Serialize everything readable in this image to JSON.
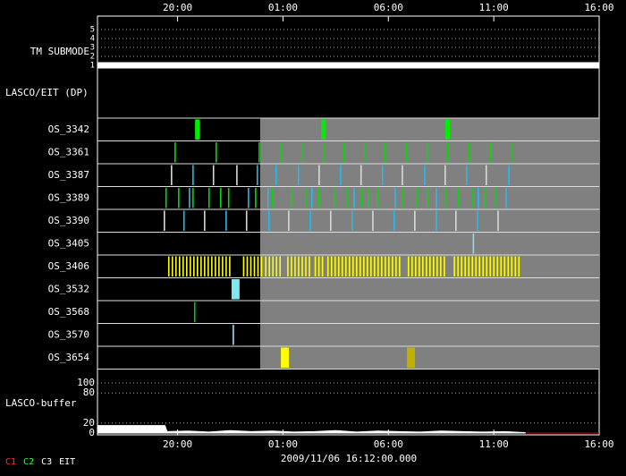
{
  "chart_data": {
    "type": "timeline",
    "date_label": "2009/11/06 16:12:00.000",
    "xlim": [
      16.2,
      40
    ],
    "xticks": [
      {
        "value": 20,
        "label": "20:00"
      },
      {
        "value": 25,
        "label": "01:00"
      },
      {
        "value": 30,
        "label": "06:00"
      },
      {
        "value": 35,
        "label": "11:00"
      },
      {
        "value": 40,
        "label": "16:00"
      }
    ],
    "gray_start": 23.92,
    "tm_submode": {
      "label": "TM SUBMODE",
      "ylim": [
        0.3,
        5.3
      ],
      "yticks": [
        1,
        2,
        3,
        4,
        5
      ],
      "x": [
        16.2,
        40
      ],
      "values": [
        1,
        1
      ],
      "color": "#ffffff"
    },
    "dp_label": "LASCO/EIT (DP)",
    "rows": [
      {
        "name": "OS_3342",
        "series": [
          {
            "color": "#00ee00",
            "duration": 0.22,
            "times": [
              20.83,
              26.81,
              32.7
            ]
          }
        ]
      },
      {
        "name": "OS_3361",
        "series": [
          {
            "color": "#00dd00",
            "times": [
              19.85,
              21.8,
              23.84,
              24.86,
              25.87,
              26.89,
              27.87,
              28.84,
              29.82,
              30.84,
              31.81,
              32.79,
              33.81,
              34.83,
              35.8
            ]
          }
        ]
      },
      {
        "name": "OS_3387",
        "series": [
          {
            "color": "#d8d8d8",
            "times": [
              19.68,
              21.67,
              22.78,
              26.68,
              28.67,
              30.63,
              32.66,
              34.61
            ]
          },
          {
            "color": "#22bbee",
            "times": [
              20.7,
              23.75,
              24.64,
              25.7,
              27.7,
              29.69,
              31.69,
              33.68,
              35.68
            ]
          }
        ]
      },
      {
        "name": "OS_3389",
        "series": [
          {
            "color": "#00dd00",
            "times": [
              19.42,
              20.02,
              20.7,
              21.46,
              22.01,
              22.39,
              23.67,
              24.47,
              25.36,
              26.04,
              26.68,
              27.4,
              28.0,
              28.72,
              29.01,
              29.44,
              30.63,
              31.31,
              31.81,
              32.66,
              33.3,
              33.94,
              34.53,
              35.04
            ]
          },
          {
            "color": "#22bbee",
            "times": [
              20.53,
              23.33,
              24.26,
              26.34,
              28.34,
              30.29,
              32.24,
              34.23,
              35.55
            ]
          }
        ]
      },
      {
        "name": "OS_3390",
        "series": [
          {
            "color": "#d8d8d8",
            "times": [
              19.34,
              21.25,
              23.24,
              25.24,
              27.23,
              29.23,
              31.22,
              33.17,
              35.17
            ]
          },
          {
            "color": "#22bbee",
            "times": [
              20.27,
              22.27,
              24.3,
              26.26,
              28.25,
              30.24,
              32.24,
              34.19
            ]
          }
        ]
      },
      {
        "name": "OS_3405",
        "series": [
          {
            "color": "#88ddee",
            "times": [
              34.0
            ]
          }
        ]
      },
      {
        "name": "OS_3406",
        "series": [
          {
            "color": "#ffff00",
            "times": [
              19.55,
              19.72,
              19.89,
              20.06,
              20.23,
              20.4,
              20.57,
              20.74,
              20.91,
              21.08,
              21.25,
              21.42,
              21.59,
              21.76,
              21.93,
              22.1,
              22.27,
              22.44,
              23.1,
              23.27,
              23.44,
              23.61,
              23.78,
              23.95,
              24.15,
              24.32,
              24.49,
              24.66,
              24.83,
              25.2,
              25.37,
              25.54,
              25.71,
              25.88,
              26.05,
              26.22,
              26.5,
              26.67,
              26.84,
              27.1,
              27.27,
              27.44,
              27.61,
              27.78,
              27.95,
              28.12,
              28.29,
              28.46,
              28.63,
              28.8,
              28.97,
              29.14,
              29.31,
              29.48,
              29.65,
              29.82,
              29.99,
              30.16,
              30.33,
              30.5,
              30.92,
              31.09,
              31.26,
              31.43,
              31.6,
              31.77,
              31.94,
              32.11,
              32.28,
              32.45,
              32.62,
              33.1,
              33.27,
              33.44,
              33.61,
              33.78,
              33.95,
              34.12,
              34.29,
              34.46,
              34.63,
              34.8,
              34.97,
              35.14,
              35.31,
              35.48,
              35.65,
              35.82,
              35.99,
              36.16
            ]
          }
        ]
      },
      {
        "name": "OS_3532",
        "series": [
          {
            "color": "#7fe8f0",
            "duration": 0.38,
            "times": [
              22.56
            ]
          }
        ]
      },
      {
        "name": "OS_3568",
        "series": [
          {
            "color": "#00cc00",
            "times": [
              20.78
            ]
          }
        ]
      },
      {
        "name": "OS_3570",
        "series": [
          {
            "color": "#99ddff",
            "times": [
              22.61
            ]
          }
        ]
      },
      {
        "name": "OS_3654",
        "series": [
          {
            "color": "#ffff00",
            "duration": 0.38,
            "times": [
              24.9
            ]
          },
          {
            "color": "#c0b000",
            "duration": 0.38,
            "times": [
              30.88
            ]
          }
        ]
      }
    ],
    "buffer": {
      "label": "LASCO-buffer",
      "ylim": [
        0,
        100
      ],
      "yticks": [
        0,
        20,
        80,
        100
      ],
      "series": [
        {
          "color": "#ffffff",
          "x": [
            16.2,
            19.4,
            19.5,
            20.5,
            21.5,
            22.5,
            23.5,
            24.5,
            25.5,
            26.5,
            27.5,
            28.5,
            29.5,
            30.5,
            31.5,
            32.5,
            33.5,
            34.5,
            35.5,
            36.5
          ],
          "values": [
            15,
            15,
            3,
            4,
            2,
            5,
            3,
            4,
            2,
            3,
            5,
            2,
            4,
            3,
            2,
            4,
            3,
            2,
            3,
            1
          ]
        },
        {
          "color": "#cc0000",
          "x": [
            36.5,
            40
          ],
          "values": [
            0,
            0
          ]
        }
      ]
    },
    "legend": [
      {
        "label": "C1",
        "color": "#ff3333"
      },
      {
        "label": "C2",
        "color": "#33ff33"
      },
      {
        "label": "C3",
        "color": "#ffffff"
      },
      {
        "label": "EIT",
        "color": "#ffffff"
      }
    ]
  }
}
